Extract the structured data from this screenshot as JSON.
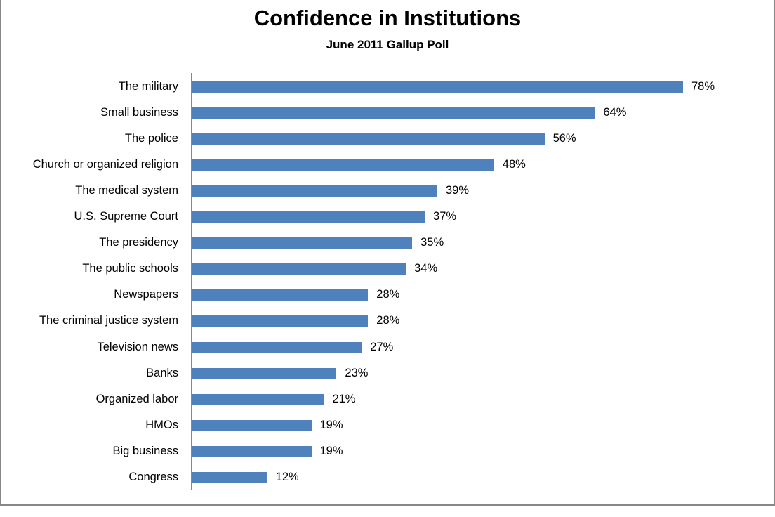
{
  "chart": {
    "title": "Confidence in Institutions",
    "subtitle": "June 2011 Gallup Poll",
    "bar_color": "#4f81bd",
    "axis_color": "#888888",
    "border_color": "#888888"
  },
  "chart_data": {
    "type": "bar",
    "orientation": "horizontal",
    "title": "Confidence in Institutions",
    "subtitle": "June 2011 Gallup Poll",
    "xlabel": "",
    "ylabel": "",
    "categories": [
      "The military",
      "Small business",
      "The police",
      "Church or organized religion",
      "The medical system",
      "U.S. Supreme Court",
      "The presidency",
      "The public schools",
      "Newspapers",
      "The criminal justice system",
      "Television news",
      "Banks",
      "Organized labor",
      "HMOs",
      "Big business",
      "Congress"
    ],
    "values": [
      78,
      64,
      56,
      48,
      39,
      37,
      35,
      34,
      28,
      28,
      27,
      23,
      21,
      19,
      19,
      12
    ],
    "value_labels": [
      "78%",
      "64%",
      "56%",
      "48%",
      "39%",
      "37%",
      "35%",
      "34%",
      "28%",
      "28%",
      "27%",
      "23%",
      "21%",
      "19%",
      "19%",
      "12%"
    ],
    "unit": "%",
    "grid": false,
    "legend": null,
    "xlim": [
      0,
      80
    ]
  }
}
